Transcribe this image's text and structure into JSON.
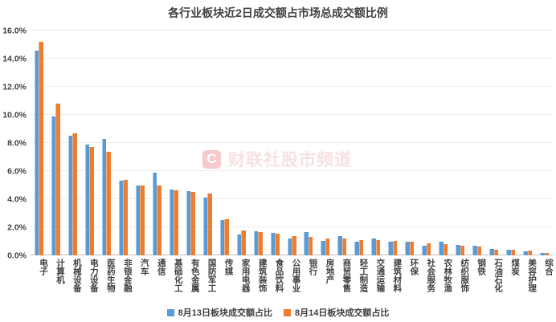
{
  "title": "各行业板块近2日成交额占市场总成交额比例",
  "watermark": {
    "icon_letter": "C",
    "text": "财联社股市频道"
  },
  "legend": [
    {
      "label": "8月13日板块成交额占比",
      "color": "#5B9BD5"
    },
    {
      "label": "8月14日板块成交额占比",
      "color": "#ED7D31"
    }
  ],
  "colors": {
    "series1_blue": "#5B9BD5",
    "series2_orange": "#ED7D31",
    "gridline": "#ECECEC",
    "axis_line": "#BFBFBF",
    "label_text": "#404040",
    "watermark_pink": "#F6CACA"
  },
  "chart_data": {
    "type": "bar",
    "title": "各行业板块近2日成交额占市场总成交额比例",
    "xlabel": "",
    "ylabel": "",
    "ylim": [
      0,
      16
    ],
    "ytick_step": 2,
    "ytick_labels": [
      "0.0%",
      "2.0%",
      "4.0%",
      "6.0%",
      "8.0%",
      "10.0%",
      "12.0%",
      "14.0%",
      "16.0%"
    ],
    "grid": true,
    "legend_position": "bottom",
    "categories": [
      "电子",
      "计算机",
      "机械设备",
      "电力设备",
      "医药生物",
      "非银金融",
      "汽车",
      "通信",
      "基础化工",
      "有色金属",
      "国防军工",
      "传媒",
      "家用电器",
      "建筑装饰",
      "食品饮料",
      "公用事业",
      "银行",
      "房地产",
      "商贸零售",
      "轻工制造",
      "交通运输",
      "建筑材料",
      "环保",
      "社会服务",
      "农林牧渔",
      "纺织服饰",
      "钢铁",
      "石油石化",
      "煤炭",
      "美容护理",
      "综合"
    ],
    "series": [
      {
        "name": "8月13日板块成交额占比",
        "color": "#5B9BD5",
        "values": [
          14.6,
          9.9,
          8.5,
          7.9,
          8.3,
          5.3,
          5.0,
          5.9,
          4.7,
          4.6,
          4.1,
          2.5,
          1.5,
          1.7,
          1.6,
          1.2,
          1.65,
          1.05,
          1.4,
          0.95,
          1.2,
          0.95,
          0.95,
          0.7,
          0.95,
          0.75,
          0.7,
          0.45,
          0.4,
          0.3,
          0.2
        ]
      },
      {
        "name": "8月14日板块成交额占比",
        "color": "#ED7D31",
        "values": [
          15.2,
          10.8,
          8.7,
          7.7,
          7.4,
          5.4,
          5.0,
          5.0,
          4.65,
          4.5,
          4.4,
          2.6,
          1.8,
          1.65,
          1.55,
          1.35,
          1.3,
          1.2,
          1.2,
          1.1,
          1.1,
          1.05,
          0.95,
          0.85,
          0.8,
          0.7,
          0.65,
          0.4,
          0.4,
          0.35,
          0.15
        ]
      }
    ]
  }
}
